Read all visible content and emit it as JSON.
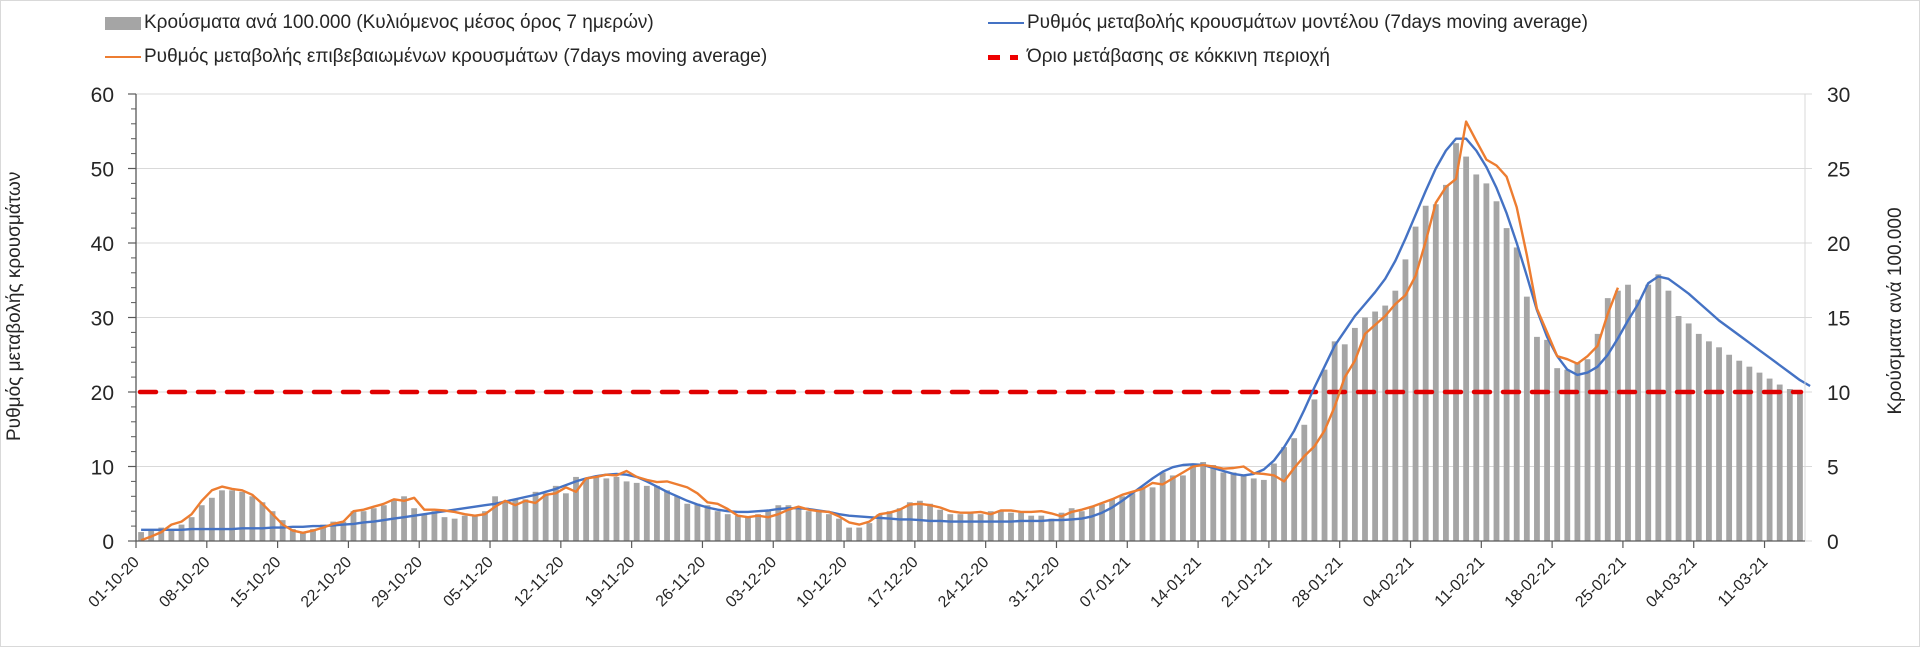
{
  "chart_data": {
    "type": "bar",
    "title": "",
    "legend": [
      {
        "key": "cases",
        "label": "Κρούσματα ανά 100.000 (Κυλιόμενος μέσος όρος 7 ημερών)",
        "kind": "bar",
        "color": "#a5a5a5"
      },
      {
        "key": "confirmed_rate",
        "label": "Ρυθμός μεταβολής επιβεβαιωμένων κρουσμάτων (7days moving average)",
        "kind": "line",
        "color": "#ed7d31"
      },
      {
        "key": "model_rate",
        "label": "Ρυθμός μεταβολής κρουσμάτων μοντέλου (7days moving average)",
        "kind": "line",
        "color": "#4472c4"
      },
      {
        "key": "threshold",
        "label": "Όριο μετάβασης σε κόκκινη περιοχή",
        "kind": "dashed-line",
        "color": "#e00000"
      }
    ],
    "legend_position": "top",
    "ylabel": "Ρυθμός μεταβολής κρουσμάτων",
    "y2label": "Κρούσματα ανά 100.000",
    "ylim": [
      0,
      60
    ],
    "y2lim": [
      0,
      30
    ],
    "yticks": [
      0,
      10,
      20,
      30,
      40,
      50,
      60
    ],
    "y2ticks": [
      0,
      5,
      10,
      15,
      20,
      25,
      30
    ],
    "grid": true,
    "start_date": "01-10-20",
    "end_date": "15-03-21",
    "xtick_labels": [
      "01-10-20",
      "08-10-20",
      "15-10-20",
      "22-10-20",
      "29-10-20",
      "05-11-20",
      "12-11-20",
      "19-11-20",
      "26-11-20",
      "03-12-20",
      "10-12-20",
      "17-12-20",
      "24-12-20",
      "31-12-20",
      "07-01-21",
      "14-01-21",
      "21-01-21",
      "28-01-21",
      "04-02-21",
      "11-02-21",
      "18-02-21",
      "25-02-21",
      "04-03-21",
      "11-03-21"
    ],
    "threshold_value": 20,
    "series": [
      {
        "name": "Κρούσματα ανά 100.000 (Κυλιόμενος μέσος όρος 7 ημερών)",
        "axis": "right",
        "type": "bar",
        "values": [
          0.6,
          0.7,
          0.9,
          0.8,
          1.1,
          1.6,
          2.4,
          2.9,
          3.4,
          3.4,
          3.3,
          3.0,
          2.6,
          2.0,
          1.4,
          0.8,
          0.6,
          0.8,
          1.1,
          1.3,
          1.3,
          2.0,
          2.0,
          2.2,
          2.4,
          2.8,
          3.0,
          2.2,
          1.8,
          2.0,
          1.6,
          1.5,
          1.7,
          1.7,
          2.0,
          3.0,
          2.6,
          2.8,
          2.8,
          3.3,
          3.2,
          3.7,
          3.2,
          4.3,
          4.2,
          4.3,
          4.2,
          4.3,
          4.0,
          3.9,
          3.7,
          3.7,
          3.4,
          3.0,
          2.5,
          2.5,
          2.4,
          2.0,
          1.8,
          1.7,
          1.6,
          1.8,
          2.1,
          2.4,
          2.4,
          2.2,
          2.0,
          2.0,
          1.8,
          1.5,
          0.9,
          0.9,
          1.2,
          1.8,
          2.0,
          2.2,
          2.6,
          2.7,
          2.5,
          2.1,
          1.8,
          1.8,
          1.9,
          1.8,
          2.0,
          2.0,
          1.9,
          1.9,
          1.7,
          1.7,
          1.5,
          1.9,
          2.2,
          2.0,
          2.3,
          2.5,
          2.8,
          3.0,
          3.2,
          3.6,
          3.6,
          4.6,
          4.4,
          4.4,
          5.2,
          5.3,
          5.1,
          4.6,
          4.6,
          4.4,
          4.2,
          4.1,
          5.2,
          6.3,
          6.9,
          7.8,
          9.5,
          11.5,
          13.4,
          13.2,
          14.3,
          15.0,
          15.4,
          15.8,
          16.8,
          18.9,
          21.1,
          22.5,
          22.6,
          23.9,
          26.7,
          25.8,
          24.6,
          24.0,
          22.8,
          21.0,
          19.7,
          16.4,
          13.7,
          13.5,
          11.6,
          11.5,
          12.0,
          12.2,
          13.9,
          16.3,
          16.8,
          17.2,
          16.2,
          17.2,
          17.9,
          16.8,
          15.1,
          14.6,
          13.9,
          13.4,
          13.0,
          12.5,
          12.1,
          11.7,
          11.3,
          10.9,
          10.5,
          10.2,
          9.9
        ]
      },
      {
        "name": "Ρυθμός μεταβολής επιβεβαιωμένων κρουσμάτων (7days moving average)",
        "axis": "left",
        "type": "line",
        "values": [
          0.1,
          0.6,
          1.2,
          2.2,
          2.6,
          3.6,
          5.4,
          6.8,
          7.3,
          7.0,
          6.8,
          6.2,
          5.0,
          3.6,
          2.2,
          1.4,
          1.1,
          1.4,
          1.8,
          2.3,
          2.6,
          4.0,
          4.2,
          4.6,
          5.0,
          5.6,
          5.4,
          5.8,
          4.2,
          4.2,
          4.1,
          3.9,
          3.6,
          3.4,
          3.6,
          4.6,
          5.4,
          4.8,
          5.4,
          5.1,
          6.2,
          6.4,
          7.2,
          6.6,
          8.4,
          8.6,
          8.9,
          8.8,
          9.4,
          8.6,
          8.2,
          7.9,
          8.0,
          7.6,
          7.2,
          6.4,
          5.2,
          5.0,
          4.3,
          3.4,
          3.2,
          3.4,
          3.2,
          3.6,
          4.2,
          4.6,
          4.2,
          4.0,
          3.9,
          3.3,
          2.5,
          2.2,
          2.6,
          3.6,
          3.8,
          4.2,
          4.9,
          5.0,
          4.8,
          4.5,
          4.0,
          3.8,
          3.8,
          3.9,
          3.6,
          4.1,
          4.1,
          3.9,
          3.9,
          4.0,
          3.7,
          3.3,
          3.9,
          4.2,
          4.6,
          5.1,
          5.6,
          6.2,
          6.6,
          7.0,
          7.8,
          7.6,
          8.4,
          9.2,
          10.0,
          10.2,
          10.0,
          9.7,
          9.8,
          10.0,
          9.1,
          9.0,
          8.8,
          8.0,
          9.8,
          11.4,
          12.7,
          14.8,
          18.0,
          22.0,
          24.2,
          27.8,
          29.0,
          30.2,
          31.8,
          33.0,
          35.6,
          40.2,
          45.4,
          47.5,
          48.6,
          56.3,
          53.7,
          51.2,
          50.4,
          48.9,
          44.8,
          38.4,
          31.2,
          28.0,
          24.8,
          24.4,
          23.8,
          24.8,
          26.2,
          30.5,
          34.0
        ]
      },
      {
        "name": "Ρυθμός μεταβολής κρουσμάτων μοντέλου (7days moving average)",
        "axis": "left",
        "type": "line",
        "values": [
          1.5,
          1.5,
          1.5,
          1.5,
          1.5,
          1.6,
          1.6,
          1.6,
          1.6,
          1.6,
          1.7,
          1.7,
          1.7,
          1.8,
          1.8,
          1.9,
          1.9,
          2.0,
          2.0,
          2.1,
          2.2,
          2.3,
          2.5,
          2.6,
          2.8,
          3.0,
          3.2,
          3.4,
          3.6,
          3.8,
          4.0,
          4.2,
          4.4,
          4.6,
          4.8,
          5.0,
          5.3,
          5.6,
          5.9,
          6.2,
          6.6,
          7.0,
          7.5,
          8.0,
          8.4,
          8.7,
          8.9,
          9.0,
          8.9,
          8.6,
          8.0,
          7.3,
          6.6,
          6.0,
          5.4,
          4.9,
          4.5,
          4.2,
          4.0,
          3.9,
          3.9,
          4.0,
          4.1,
          4.3,
          4.4,
          4.4,
          4.3,
          4.1,
          3.9,
          3.6,
          3.4,
          3.3,
          3.2,
          3.1,
          3.0,
          2.9,
          2.9,
          2.8,
          2.7,
          2.7,
          2.6,
          2.6,
          2.6,
          2.6,
          2.6,
          2.6,
          2.6,
          2.7,
          2.7,
          2.7,
          2.8,
          2.8,
          2.9,
          3.0,
          3.3,
          3.8,
          4.5,
          5.4,
          6.4,
          7.4,
          8.4,
          9.3,
          9.9,
          10.2,
          10.3,
          10.2,
          9.8,
          9.4,
          9.0,
          8.8,
          9.0,
          9.6,
          10.8,
          12.6,
          14.8,
          17.6,
          20.6,
          23.4,
          26.2,
          28.2,
          30.2,
          31.8,
          33.4,
          35.2,
          37.6,
          40.6,
          43.8,
          47.0,
          50.0,
          52.4,
          54.0,
          54.0,
          52.4,
          50.2,
          47.4,
          44.0,
          40.0,
          35.6,
          31.0,
          27.4,
          24.8,
          23.0,
          22.3,
          22.6,
          23.4,
          25.0,
          27.2,
          29.6,
          31.8,
          34.6,
          35.5,
          35.2,
          34.2,
          33.2,
          32.0,
          30.8,
          29.6,
          28.6,
          27.6,
          26.6,
          25.6,
          24.6,
          23.6,
          22.6,
          21.6,
          20.8
        ]
      }
    ]
  }
}
